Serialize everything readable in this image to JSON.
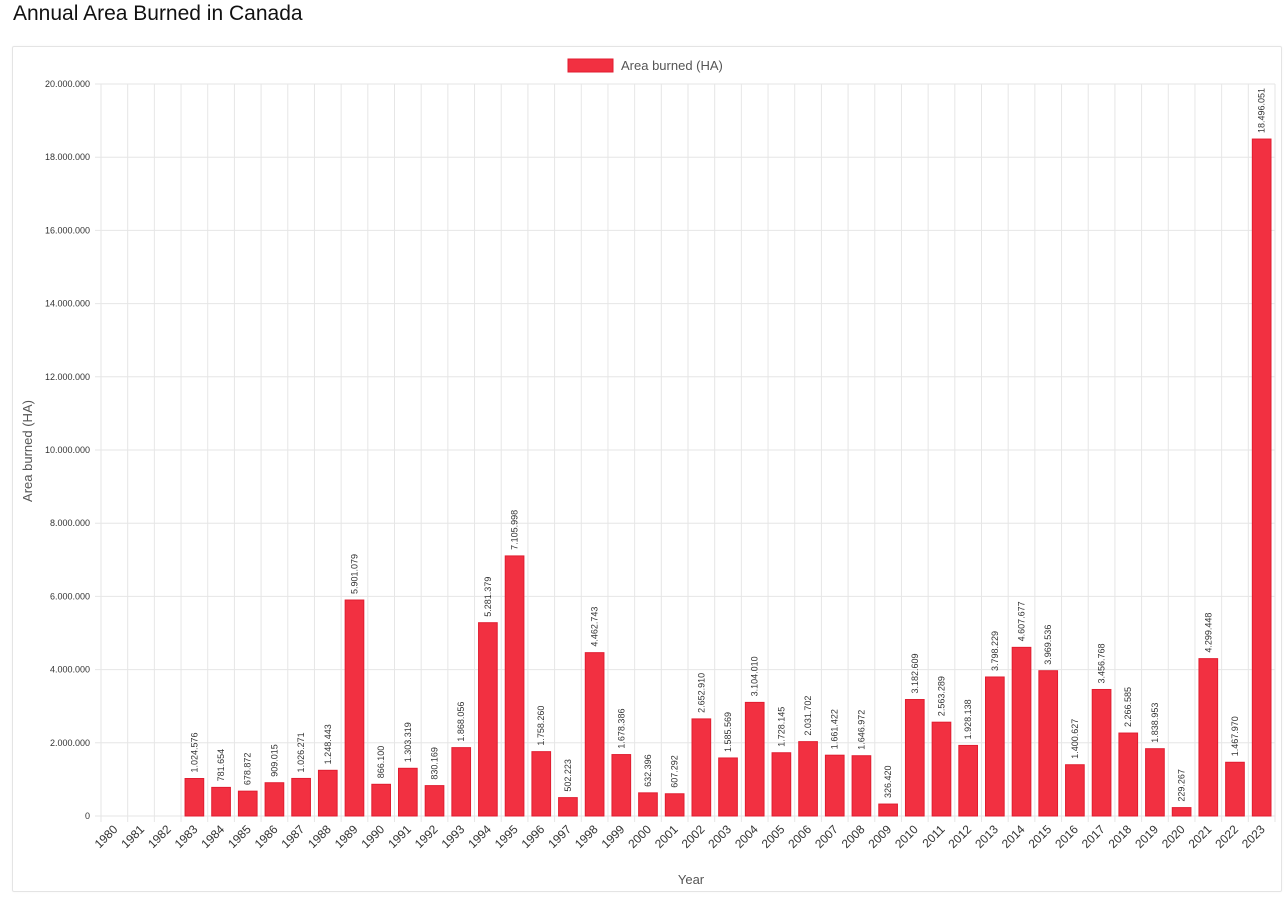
{
  "page": {
    "title": "Annual Area Burned in Canada"
  },
  "colors": {
    "bar": "#f23041",
    "bar_border": "#e11d30"
  },
  "chart_data": {
    "type": "bar",
    "title": "",
    "xlabel": "Year",
    "ylabel": "Area burned (HA)",
    "ylim": [
      0,
      20000000
    ],
    "y_tick_step": 2000000,
    "grid": true,
    "legend_position": "top-center",
    "categories": [
      "1980",
      "1981",
      "1982",
      "1983",
      "1984",
      "1985",
      "1986",
      "1987",
      "1988",
      "1989",
      "1990",
      "1991",
      "1992",
      "1993",
      "1994",
      "1995",
      "1996",
      "1997",
      "1998",
      "1999",
      "2000",
      "2001",
      "2002",
      "2003",
      "2004",
      "2005",
      "2006",
      "2007",
      "2008",
      "2009",
      "2010",
      "2011",
      "2012",
      "2013",
      "2014",
      "2015",
      "2016",
      "2017",
      "2018",
      "2019",
      "2020",
      "2021",
      "2022",
      "2023"
    ],
    "series": [
      {
        "name": "Area burned (HA)",
        "values": [
          null,
          null,
          null,
          1024576,
          781654,
          678872,
          909015,
          1026271,
          1248443,
          5901079,
          866100,
          1303319,
          830169,
          1868056,
          5281379,
          7105998,
          1758260,
          502223,
          4462743,
          1678386,
          632396,
          607292,
          2652910,
          1585569,
          3104010,
          1728145,
          2031702,
          1661422,
          1646972,
          326420,
          3182609,
          2563289,
          1928138,
          3798229,
          4607677,
          3969536,
          1400627,
          3456768,
          2266585,
          1838953,
          229267,
          4299448,
          1467970,
          18496051
        ]
      }
    ]
  }
}
